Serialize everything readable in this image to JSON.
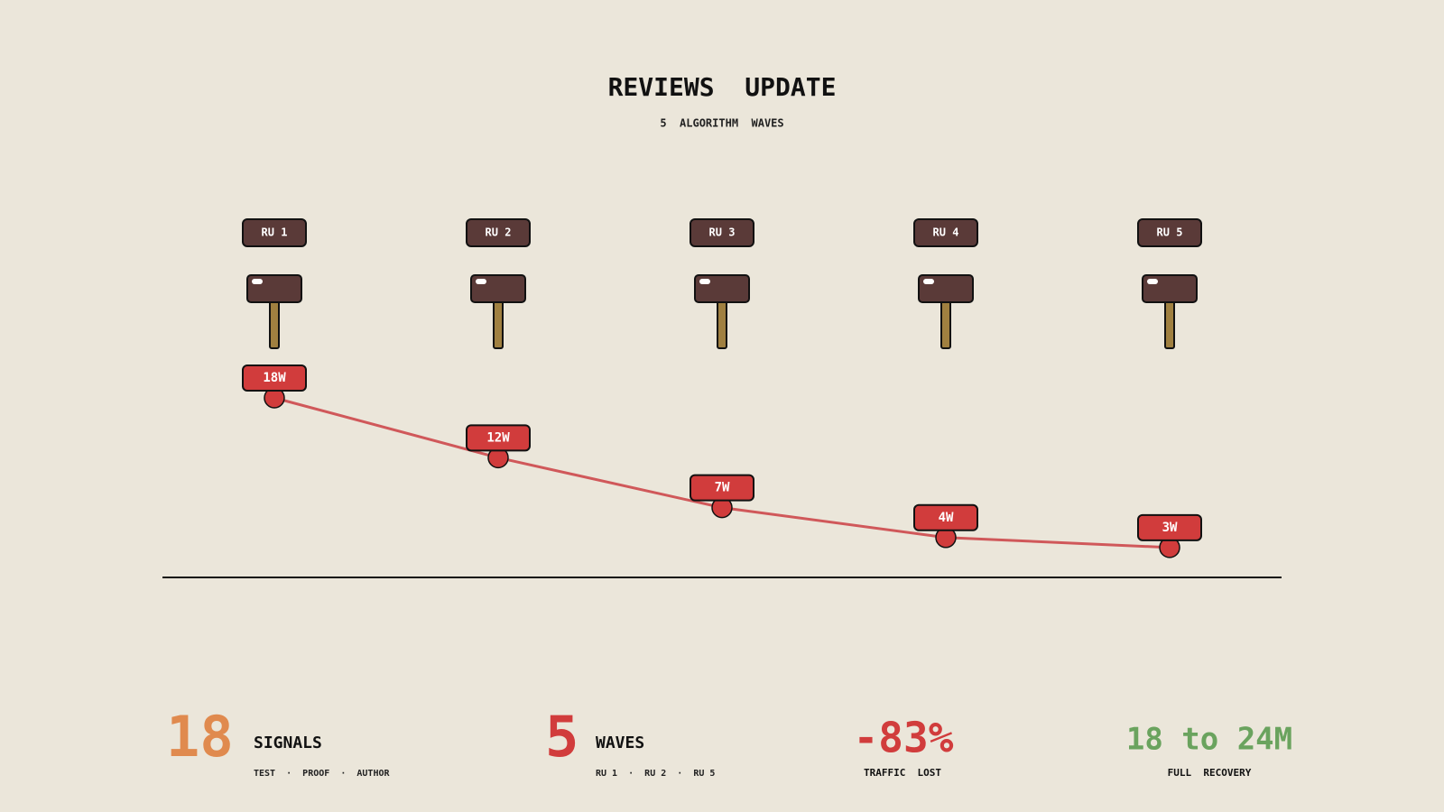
{
  "chart_data": {
    "type": "line",
    "title": "REVIEWS  UPDATE",
    "subtitle": "5  ALGORITHM  WAVES",
    "categories": [
      "RU 1",
      "RU 2",
      "RU 3",
      "RU 4",
      "RU 5"
    ],
    "values": [
      18,
      12,
      7,
      4,
      3
    ],
    "value_labels": [
      "18W",
      "12W",
      "7W",
      "4W",
      "3W"
    ],
    "color": "#d0585a",
    "marker_color": "#d13c3c",
    "ylim": [
      0,
      18
    ]
  },
  "stats": [
    {
      "value": "18",
      "label": "SIGNALS",
      "detail": "TEST  ·  PROOF  ·  AUTHOR",
      "color": "#e08a4e"
    },
    {
      "value": "5",
      "label": "WAVES",
      "detail": "RU 1  ·  RU 2  ·  RU 5",
      "color": "#d13c3c"
    },
    {
      "value": "-83%",
      "label": "TRAFFIC  LOST",
      "color": "#d13c3c"
    },
    {
      "value": "18 to 24M",
      "label": "FULL  RECOVERY",
      "color": "#6aa35e"
    }
  ]
}
